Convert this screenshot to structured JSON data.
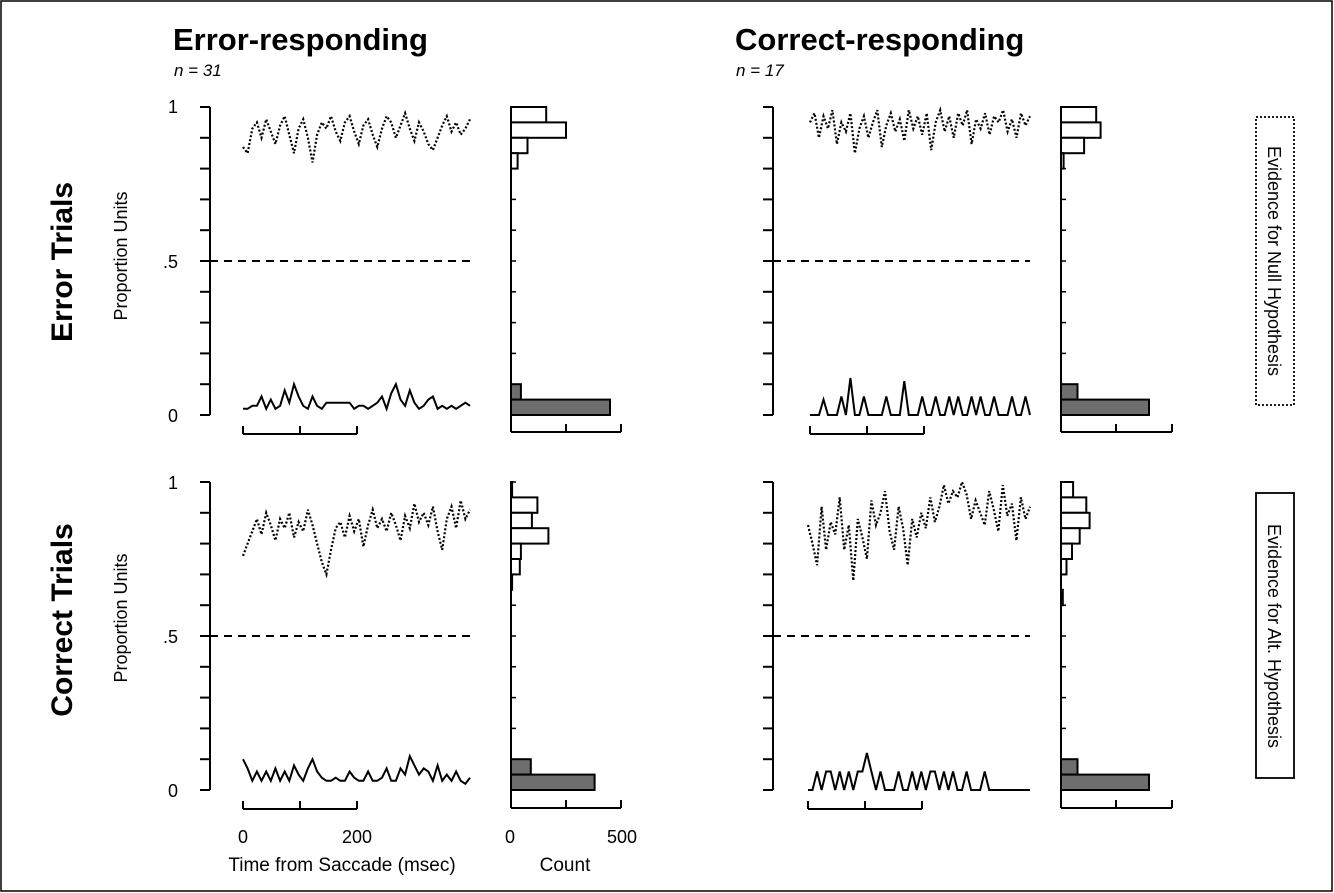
{
  "figure": {
    "columns": [
      {
        "title": "Error-responding",
        "n_label": "n = 31"
      },
      {
        "title": "Correct-responding",
        "n_label": "n = 17"
      }
    ],
    "rows": [
      {
        "title": "Error Trials"
      },
      {
        "title": "Correct Trials"
      }
    ],
    "y_axis_label": "Proportion Units",
    "y_tick_labels": [
      "1",
      ".5",
      "0"
    ],
    "x_tick_labels": [
      "0",
      "200"
    ],
    "x_axis_label": "Time from Saccade (msec)",
    "count_tick_labels": [
      "0",
      "500"
    ],
    "count_axis_label": "Count",
    "legend": [
      {
        "label": "Evidence for Null Hypothesis",
        "style": "dotted"
      },
      {
        "label": "Evidence for Alt. Hypothesis",
        "style": "solid"
      }
    ]
  },
  "chart_data": {
    "type": "line",
    "x_range_msec": [
      0,
      400
    ],
    "ylim": [
      0,
      1
    ],
    "criterion_line_y": 0.5,
    "count_range": [
      0,
      500
    ],
    "panels": [
      {
        "row": "Error Trials",
        "column": "Error-responding",
        "null_trace": {
          "y": [
            0.87,
            0.85,
            0.93,
            0.95,
            0.9,
            0.96,
            0.92,
            0.88,
            0.94,
            0.97,
            0.91,
            0.85,
            0.93,
            0.96,
            0.9,
            0.82,
            0.91,
            0.95,
            0.93,
            0.97,
            0.92,
            0.89,
            0.95,
            0.97,
            0.92,
            0.88,
            0.94,
            0.96,
            0.91,
            0.87,
            0.93,
            0.97,
            0.95,
            0.9,
            0.94,
            0.98,
            0.93,
            0.89,
            0.95,
            0.92,
            0.88,
            0.86,
            0.9,
            0.94,
            0.97,
            0.92,
            0.95,
            0.91,
            0.93,
            0.96
          ]
        },
        "alt_trace": {
          "y": [
            0.02,
            0.02,
            0.03,
            0.03,
            0.06,
            0.02,
            0.05,
            0.02,
            0.03,
            0.08,
            0.04,
            0.1,
            0.06,
            0.03,
            0.02,
            0.06,
            0.03,
            0.02,
            0.04,
            0.04,
            0.04,
            0.04,
            0.04,
            0.04,
            0.02,
            0.03,
            0.03,
            0.02,
            0.03,
            0.04,
            0.06,
            0.02,
            0.07,
            0.1,
            0.05,
            0.03,
            0.08,
            0.04,
            0.02,
            0.03,
            0.05,
            0.06,
            0.02,
            0.03,
            0.02,
            0.03,
            0.02,
            0.03,
            0.04,
            0.03
          ]
        },
        "histogram_null": [
          {
            "y": 0.975,
            "count": 160
          },
          {
            "y": 0.925,
            "count": 250
          },
          {
            "y": 0.875,
            "count": 75
          },
          {
            "y": 0.825,
            "count": 30
          }
        ],
        "histogram_alt": [
          {
            "y": 0.075,
            "count": 45
          },
          {
            "y": 0.025,
            "count": 450
          }
        ]
      },
      {
        "row": "Error Trials",
        "column": "Correct-responding",
        "null_trace": {
          "y": [
            0.95,
            0.98,
            0.9,
            0.97,
            0.93,
            0.99,
            0.88,
            0.95,
            0.92,
            0.98,
            0.85,
            0.93,
            0.97,
            0.9,
            0.95,
            0.99,
            0.87,
            0.94,
            0.98,
            0.92,
            0.96,
            0.89,
            0.99,
            0.93,
            0.97,
            0.91,
            0.98,
            0.86,
            0.95,
            0.99,
            0.92,
            0.97,
            0.9,
            0.98,
            0.94,
            0.99,
            0.88,
            0.96,
            0.93,
            0.98,
            0.91,
            0.97,
            0.95,
            0.99,
            0.92,
            0.96,
            0.9,
            0.98,
            0.94,
            0.97
          ]
        },
        "alt_trace": {
          "y": [
            0.0,
            0.0,
            0.0,
            0.05,
            0.0,
            0.0,
            0.0,
            0.06,
            0.0,
            0.12,
            0.0,
            0.0,
            0.06,
            0.0,
            0.0,
            0.0,
            0.0,
            0.06,
            0.0,
            0.0,
            0.0,
            0.11,
            0.0,
            0.0,
            0.0,
            0.06,
            0.0,
            0.0,
            0.06,
            0.0,
            0.0,
            0.06,
            0.0,
            0.06,
            0.0,
            0.0,
            0.06,
            0.0,
            0.06,
            0.0,
            0.0,
            0.06,
            0.0,
            0.0,
            0.0,
            0.06,
            0.0,
            0.0,
            0.06,
            0.0
          ]
        },
        "histogram_null": [
          {
            "y": 0.975,
            "count": 160
          },
          {
            "y": 0.925,
            "count": 180
          },
          {
            "y": 0.875,
            "count": 105
          },
          {
            "y": 0.825,
            "count": 12
          }
        ],
        "histogram_alt": [
          {
            "y": 0.075,
            "count": 75
          },
          {
            "y": 0.025,
            "count": 400
          }
        ]
      },
      {
        "row": "Correct Trials",
        "column": "Error-responding",
        "null_trace": {
          "y": [
            0.76,
            0.8,
            0.84,
            0.88,
            0.83,
            0.9,
            0.86,
            0.81,
            0.88,
            0.85,
            0.9,
            0.82,
            0.87,
            0.84,
            0.91,
            0.86,
            0.8,
            0.74,
            0.7,
            0.78,
            0.85,
            0.87,
            0.82,
            0.89,
            0.84,
            0.88,
            0.79,
            0.86,
            0.91,
            0.85,
            0.88,
            0.84,
            0.9,
            0.86,
            0.81,
            0.89,
            0.85,
            0.93,
            0.87,
            0.9,
            0.86,
            0.92,
            0.84,
            0.78,
            0.88,
            0.92,
            0.85,
            0.94,
            0.88,
            0.91
          ]
        },
        "alt_trace": {
          "y": [
            0.1,
            0.07,
            0.03,
            0.06,
            0.03,
            0.06,
            0.03,
            0.07,
            0.03,
            0.06,
            0.03,
            0.08,
            0.05,
            0.03,
            0.07,
            0.1,
            0.06,
            0.04,
            0.03,
            0.03,
            0.04,
            0.03,
            0.03,
            0.06,
            0.04,
            0.03,
            0.03,
            0.06,
            0.03,
            0.03,
            0.04,
            0.07,
            0.03,
            0.03,
            0.07,
            0.05,
            0.11,
            0.08,
            0.05,
            0.07,
            0.06,
            0.03,
            0.08,
            0.03,
            0.05,
            0.03,
            0.06,
            0.03,
            0.02,
            0.04
          ]
        },
        "histogram_null": [
          {
            "y": 0.975,
            "count": 5
          },
          {
            "y": 0.925,
            "count": 120
          },
          {
            "y": 0.875,
            "count": 95
          },
          {
            "y": 0.825,
            "count": 170
          },
          {
            "y": 0.775,
            "count": 45
          },
          {
            "y": 0.725,
            "count": 40
          },
          {
            "y": 0.675,
            "count": 5
          }
        ],
        "histogram_alt": [
          {
            "y": 0.075,
            "count": 90
          },
          {
            "y": 0.025,
            "count": 380
          }
        ]
      },
      {
        "row": "Correct Trials",
        "column": "Correct-responding",
        "null_trace": {
          "y": [
            0.86,
            0.8,
            0.73,
            0.92,
            0.78,
            0.87,
            0.83,
            0.95,
            0.78,
            0.86,
            0.68,
            0.88,
            0.82,
            0.75,
            0.94,
            0.86,
            0.9,
            0.97,
            0.84,
            0.78,
            0.92,
            0.85,
            0.73,
            0.88,
            0.82,
            0.9,
            0.85,
            0.95,
            0.87,
            0.92,
            0.99,
            0.93,
            0.97,
            0.95,
            1.0,
            0.96,
            0.88,
            0.94,
            0.9,
            0.86,
            0.97,
            0.91,
            0.84,
            0.99,
            0.89,
            0.93,
            0.81,
            0.95,
            0.88,
            0.92
          ]
        },
        "alt_trace": {
          "y": [
            0.0,
            0.0,
            0.06,
            0.0,
            0.06,
            0.06,
            0.0,
            0.06,
            0.0,
            0.06,
            0.0,
            0.06,
            0.06,
            0.12,
            0.06,
            0.0,
            0.06,
            0.0,
            0.0,
            0.0,
            0.06,
            0.0,
            0.0,
            0.06,
            0.0,
            0.06,
            0.0,
            0.06,
            0.06,
            0.0,
            0.06,
            0.0,
            0.06,
            0.0,
            0.0,
            0.06,
            0.0,
            0.0,
            0.0,
            0.06,
            0.0,
            0.0,
            0.0,
            0.0,
            0.0,
            0.0,
            0.0,
            0.0,
            0.0,
            0.0
          ]
        },
        "histogram_null": [
          {
            "y": 0.975,
            "count": 55
          },
          {
            "y": 0.925,
            "count": 115
          },
          {
            "y": 0.875,
            "count": 130
          },
          {
            "y": 0.825,
            "count": 85
          },
          {
            "y": 0.775,
            "count": 50
          },
          {
            "y": 0.725,
            "count": 25
          },
          {
            "y": 0.625,
            "count": 8
          }
        ],
        "histogram_alt": [
          {
            "y": 0.075,
            "count": 75
          },
          {
            "y": 0.025,
            "count": 400
          }
        ]
      }
    ]
  }
}
